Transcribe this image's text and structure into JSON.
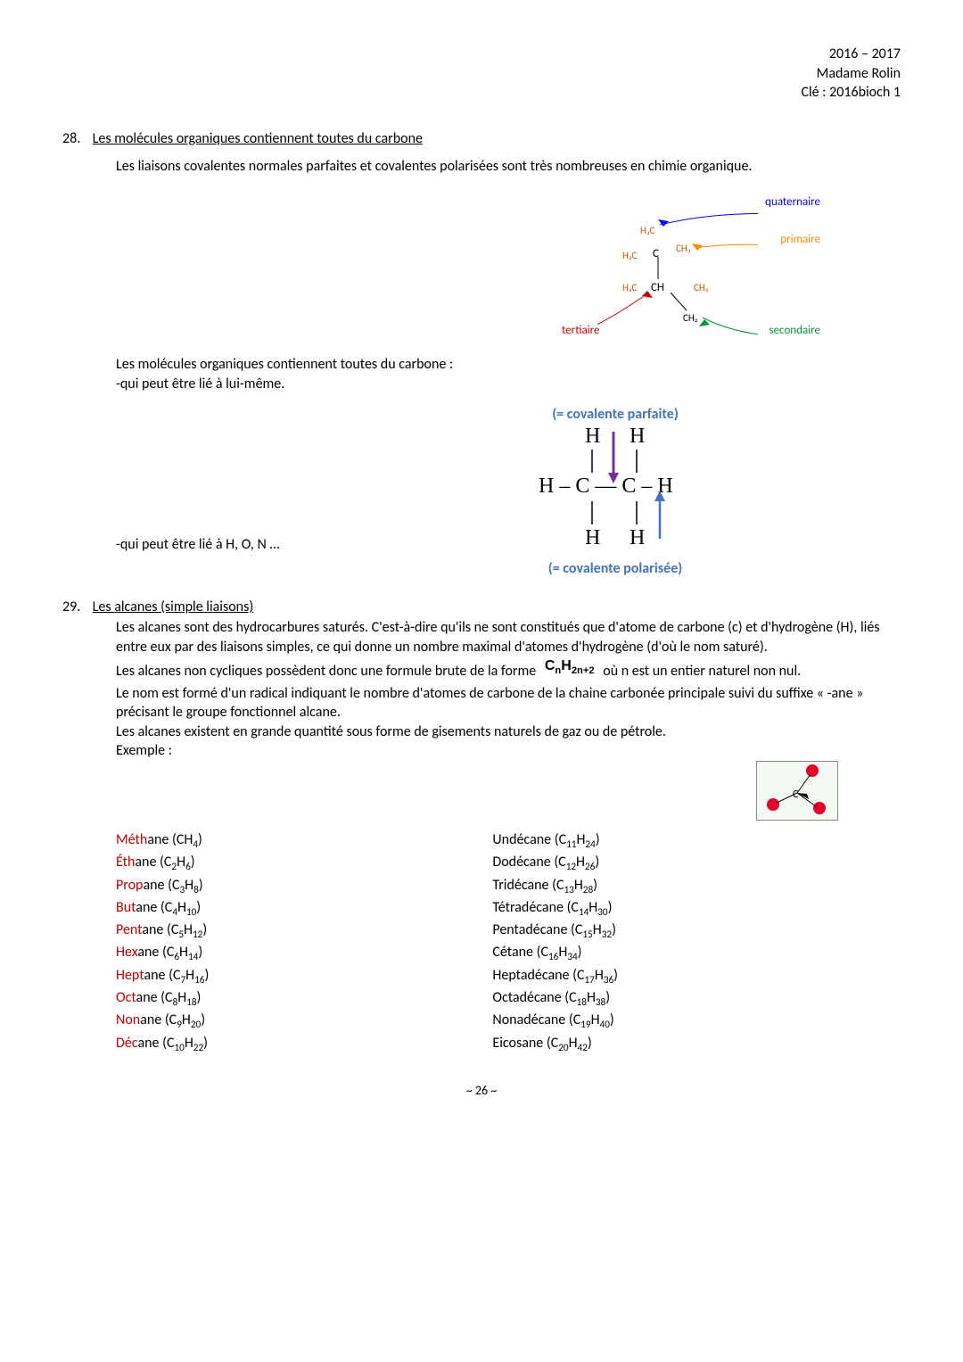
{
  "header": {
    "year": "2016 – 2017",
    "teacher": "Madame Rolin",
    "key": "Clé : 2016bioch 1"
  },
  "s28": {
    "num": "28.",
    "title": "Les molécules organiques contiennent toutes du carbone",
    "p1": "Les liaisons covalentes normales parfaites et covalentes polarisées sont très nombreuses en chimie organique.",
    "carbon_labels": {
      "quaternaire": "quaternaire",
      "primaire": "primaire",
      "secondaire": "secondaire",
      "tertiaire": "tertiaire"
    },
    "p2": "Les molécules organiques contiennent toutes du carbone :",
    "p2b": "-qui peut être lié à lui-même.",
    "bond_top": "(= covalente parfaite)",
    "bond_bottom": "(= covalente polarisée)",
    "p3": "-qui peut être lié à H, O, N …"
  },
  "s29": {
    "num": "29.",
    "title": "Les alcanes (simple liaisons)",
    "p1": "Les alcanes sont des hydrocarbures saturés. C'est-à-dire qu'ils ne sont constitués que d'atome de carbone (c) et d'hydrogène (H), liés entre eux par des liaisons simples, ce qui donne un nombre maximal d'atomes d'hydrogène (d'où le nom saturé).",
    "p2a": "Les alcanes non cycliques possèdent donc une formule brute de la forme",
    "formula": "CₙH₂ₙ₊₂",
    "p2b": "où n est un entier naturel non nul.",
    "p3": "Le nom est formé d'un radical indiquant le nombre d'atomes de carbone de la chaine carbonée principale suivi du suffixe « -ane » précisant le groupe fonctionnel alcane.",
    "p4": "Les alcanes existent en grande quantité sous forme de gisements naturels de gaz ou de pétrole.",
    "p5": "Exemple :",
    "alkanes_left": [
      {
        "prefix": "Méth",
        "suffix": "ane",
        "f": "CH₄"
      },
      {
        "prefix": "Éth",
        "suffix": "ane",
        "f": "C₂H₆"
      },
      {
        "prefix": "Prop",
        "suffix": "ane",
        "f": "C₃H₈"
      },
      {
        "prefix": "But",
        "suffix": "ane",
        "f": "C₄H₁₀"
      },
      {
        "prefix": "Pent",
        "suffix": "ane",
        "f": "C₅H₁₂"
      },
      {
        "prefix": "Hex",
        "suffix": "ane",
        "f": "C₆H₁₄"
      },
      {
        "prefix": "Hept",
        "suffix": "ane",
        "f": "C₇H₁₆"
      },
      {
        "prefix": "Oct",
        "suffix": "ane",
        "f": "C₈H₁₈"
      },
      {
        "prefix": "Non",
        "suffix": "ane",
        "f": "C₉H₂₀"
      },
      {
        "prefix": "Déc",
        "suffix": "ane",
        "f": "C₁₀H₂₂"
      }
    ],
    "alkanes_right": [
      {
        "name": "Undécane",
        "f": "C₁₁H₂₄"
      },
      {
        "name": "Dodécane",
        "f": "C₁₂H₂₆"
      },
      {
        "name": "Tridécane",
        "f": "C₁₃H₂₈"
      },
      {
        "name": "Tétradécane",
        "f": "C₁₄H₃₀"
      },
      {
        "name": "Pentadécane",
        "f": "C₁₅H₃₂"
      },
      {
        "name": "Cétane",
        "f": "C₁₆H₃₄"
      },
      {
        "name": "Heptadécane",
        "f": "C₁₇H₃₆"
      },
      {
        "name": "Octadécane",
        "f": "C₁₈H₃₈"
      },
      {
        "name": "Nonadécane",
        "f": "C₁₉H₄₀"
      },
      {
        "name": "Eicosane",
        "f": "C₂₀H₄₂"
      }
    ]
  },
  "page": "~ 26 ~",
  "colors": {
    "red_prefix": "#c00000",
    "blue_label": "#4472c4",
    "quat": "#0000ff",
    "prim": "#ff8800",
    "sec": "#009933",
    "tert": "#cc0000",
    "methane_red": "#e4002b"
  }
}
